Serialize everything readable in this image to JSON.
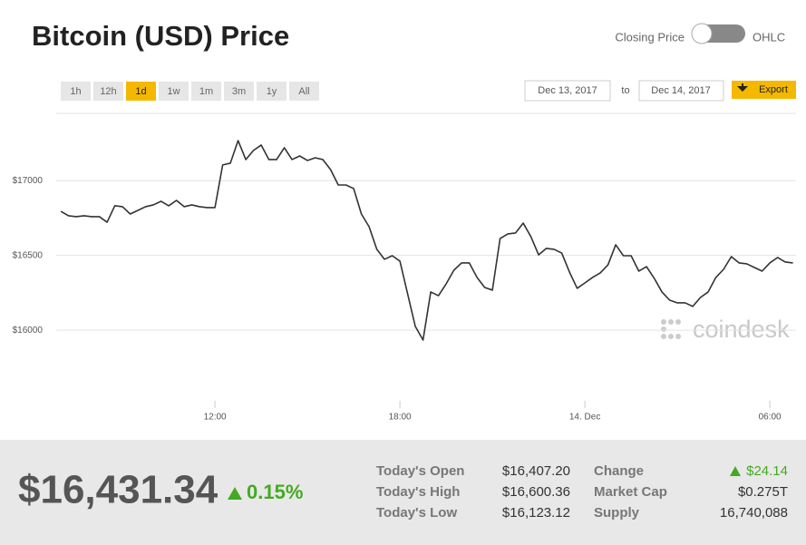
{
  "header": {
    "title": "Bitcoin (USD) Price",
    "toggle_left": "Closing Price",
    "toggle_right": "OHLC"
  },
  "toolbar": {
    "ranges": [
      "1h",
      "12h",
      "1d",
      "1w",
      "1m",
      "3m",
      "1y",
      "All"
    ],
    "active_range": "1d",
    "date_from": "Dec 13, 2017",
    "date_separator": "to",
    "date_to": "Dec 14, 2017",
    "export": "Export"
  },
  "chart_data": {
    "type": "line",
    "color": "#333333",
    "grid": true,
    "x": [
      7,
      7.25,
      7.5,
      7.75,
      8,
      8.25,
      8.5,
      8.75,
      9,
      9.25,
      9.5,
      9.75,
      10,
      10.25,
      10.5,
      10.75,
      11,
      11.25,
      11.5,
      11.75,
      12,
      12.25,
      12.5,
      12.75,
      13,
      13.25,
      13.5,
      13.75,
      14,
      14.25,
      14.5,
      14.75,
      15,
      15.25,
      15.5,
      15.75,
      16,
      16.25,
      16.5,
      16.75,
      17,
      17.25,
      17.5,
      17.75,
      18,
      18.25,
      18.5,
      18.75,
      19,
      19.25,
      19.5,
      19.75,
      20,
      20.25,
      20.5,
      20.75,
      21,
      21.25,
      21.5,
      21.75,
      22,
      22.25,
      22.5,
      22.75,
      23,
      23.25,
      23.5,
      23.75,
      24,
      24.25,
      24.5,
      24.75,
      25,
      25.25,
      25.5,
      25.75,
      26,
      26.25,
      26.5,
      26.75,
      27,
      27.25,
      27.5,
      27.75,
      28,
      28.25,
      28.5,
      28.75,
      29,
      29.25,
      29.5,
      29.75,
      30,
      30.25,
      30.5,
      30.75
    ],
    "values": [
      16795,
      16765,
      16759,
      16765,
      16759,
      16759,
      16722,
      16832,
      16826,
      16777,
      16801,
      16826,
      16838,
      16862,
      16832,
      16868,
      16826,
      16838,
      16826,
      16820,
      16820,
      17105,
      17117,
      17268,
      17141,
      17202,
      17238,
      17141,
      17141,
      17220,
      17141,
      17165,
      17135,
      17153,
      17141,
      17074,
      16971,
      16971,
      16947,
      16777,
      16692,
      16541,
      16474,
      16498,
      16462,
      16243,
      16025,
      15934,
      16256,
      16231,
      16310,
      16401,
      16450,
      16450,
      16353,
      16286,
      16268,
      16613,
      16644,
      16650,
      16716,
      16625,
      16504,
      16547,
      16541,
      16516,
      16389,
      16280,
      16316,
      16353,
      16383,
      16437,
      16571,
      16498,
      16498,
      16395,
      16425,
      16347,
      16256,
      16201,
      16183,
      16183,
      16159,
      16219,
      16256,
      16353,
      16407,
      16492,
      16450,
      16444,
      16419,
      16395,
      16450,
      16486,
      16456,
      16450
    ],
    "xlim": [
      6.85,
      30.85
    ],
    "xticks": [
      {
        "value": 12,
        "label": "12:00"
      },
      {
        "value": 18,
        "label": "18:00"
      },
      {
        "value": 24,
        "label": "14. Dec"
      },
      {
        "value": 30,
        "label": "06:00"
      }
    ],
    "ylim": [
      15540,
      17450
    ],
    "yticks": [
      {
        "value": 16000,
        "label": "$16000"
      },
      {
        "value": 16500,
        "label": "$16500"
      },
      {
        "value": 17000,
        "label": "$17000"
      }
    ]
  },
  "watermark": "coindesk",
  "summary": {
    "price": "$16,431.34",
    "change_pct": "0.15%",
    "stats": [
      [
        "Today's Open",
        "$16,407.20"
      ],
      [
        "Today's High",
        "$16,600.36"
      ],
      [
        "Today's Low",
        "$16,123.12"
      ],
      [
        "Change",
        "$24.14"
      ],
      [
        "Market Cap",
        "$0.275T"
      ],
      [
        "Supply",
        "16,740,088"
      ]
    ]
  }
}
